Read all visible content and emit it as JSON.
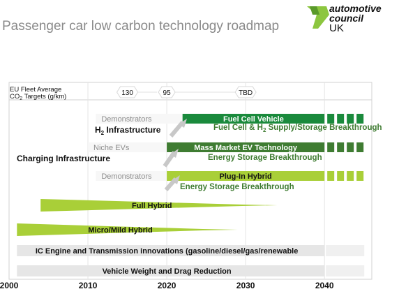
{
  "title": "Passenger car low carbon technology roadmap",
  "logo": {
    "line1": "automotive",
    "line2": "council",
    "line3": "UK"
  },
  "colors": {
    "dark_green": "#1a8a3c",
    "mid_green": "#3f7c32",
    "light_green": "#a9cf38",
    "grey_band": "#e6e6e6",
    "grey_text": "#8c8c8c",
    "arrow_grey": "#c8c8c8"
  },
  "targets": {
    "label_line1": "EU Fleet Average",
    "label_line2": "CO",
    "label_sub": "2",
    "label_tail": " Targets (g/km)",
    "values": [
      {
        "label": "130",
        "year": 2015
      },
      {
        "label": "95",
        "year": 2020
      },
      {
        "label": "TBD",
        "year": 2030
      }
    ]
  },
  "x_axis": {
    "min": 2000,
    "max": 2046,
    "ticks": [
      2000,
      2010,
      2020,
      2030,
      2040
    ]
  },
  "bars": [
    {
      "label": "Fuel Cell Vehicle",
      "start": 2022,
      "end": 2040,
      "dashed_to": 2046,
      "color": "dark_green",
      "row": 0
    },
    {
      "label": "Mass Market EV Technology",
      "start": 2020,
      "end": 2040,
      "dashed_to": 2046,
      "color": "mid_green",
      "row": 1
    },
    {
      "label": "Plug-In Hybrid",
      "start": 2020,
      "end": 2040,
      "dashed_to": 2046,
      "color": "light_green",
      "row": 2
    },
    {
      "label": "Full Hybrid",
      "start": 2004,
      "end": 2034,
      "color": "light_green",
      "row": 3,
      "arrow": true
    },
    {
      "label": "Micro/Mild Hybrid",
      "start": 2001,
      "end": 2029,
      "color": "light_green",
      "row": 4,
      "arrow": true
    },
    {
      "label": "IC Engine and Transmission innovations (gasoline/diesel/gas/renewable",
      "start": 2001,
      "end": 2040,
      "color": "grey_band",
      "row": 5
    },
    {
      "label": "Vehicle Weight and Drag Reduction",
      "start": 2001,
      "end": 2040,
      "color": "grey_band",
      "row": 6
    }
  ],
  "precursors": [
    {
      "label": "Demonstrators",
      "row": 0,
      "start": 2011,
      "end": 2023
    },
    {
      "label": "Niche EVs",
      "row": 1,
      "start": 2010,
      "end": 2021
    },
    {
      "label": "Demonstrators",
      "row": 2,
      "start": 2011,
      "end": 2021
    }
  ],
  "annotations": [
    {
      "text": "H2 Infrastructure",
      "main": "H",
      "sub": "2",
      "rest": " Infrastructure"
    },
    {
      "text": "Fuel Cell & H2 Supply/Storage Breakthrough",
      "main": "Fuel Cell & H",
      "sub": "2",
      "rest": " Supply/Storage Breakthrough"
    },
    {
      "text": "Charging Infrastructure"
    },
    {
      "text": "Energy Storage Breakthrough"
    },
    {
      "text": "Energy Storage Breakthrough"
    }
  ]
}
